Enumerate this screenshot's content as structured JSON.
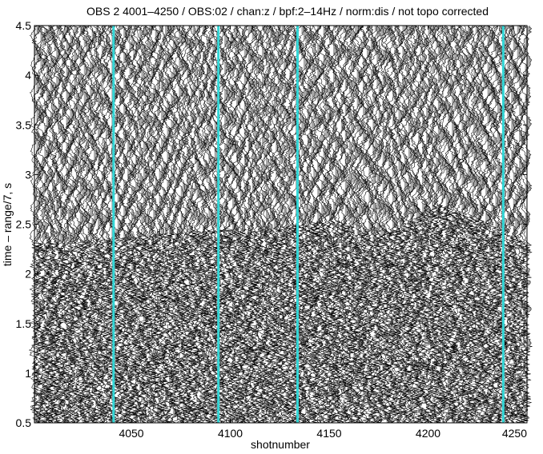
{
  "chart_data": {
    "type": "seismic_record_section",
    "title": "OBS 2 4001–4250 / OBS:02 / chan:z / bpf:2–14Hz / norm:dis / not topo corrected",
    "xlabel": "shotnumber",
    "ylabel": "time – range/7, s",
    "xlim": [
      4001,
      4250
    ],
    "ylim": [
      0.5,
      4.5
    ],
    "x_ticks": [
      4050,
      4100,
      4150,
      4200,
      4250
    ],
    "y_ticks": [
      0.5,
      1,
      1.5,
      2,
      2.5,
      3,
      3.5,
      4,
      4.5
    ],
    "x_tick_labels": [
      "4050",
      "4100",
      "4150",
      "4200",
      "4250"
    ],
    "y_tick_labels": [
      "0.5",
      "1",
      "1.5",
      "2",
      "2.5",
      "3",
      "3.5",
      "4",
      "4.5"
    ],
    "trace_count": 250,
    "wiggle_fill": "positive lobes filled grey (#a8a8a8)",
    "highlighted_traces": [
      4041,
      4094,
      4134,
      4238
    ],
    "highlight_color": "#33d6d6",
    "first_arrival_approx": [
      [
        4001,
        2.3
      ],
      [
        4040,
        2.35
      ],
      [
        4080,
        2.42
      ],
      [
        4100,
        2.45
      ],
      [
        4120,
        2.45
      ],
      [
        4140,
        2.5
      ],
      [
        4150,
        2.55
      ],
      [
        4160,
        2.5
      ],
      [
        4172,
        2.35
      ],
      [
        4190,
        2.5
      ],
      [
        4205,
        2.7
      ],
      [
        4220,
        2.6
      ],
      [
        4235,
        2.45
      ],
      [
        4250,
        2.3
      ]
    ]
  },
  "colors": {
    "background": "#ffffff",
    "fill": "#a8a8a8",
    "wiggle": "#000000",
    "highlight": "#33d6d6"
  }
}
